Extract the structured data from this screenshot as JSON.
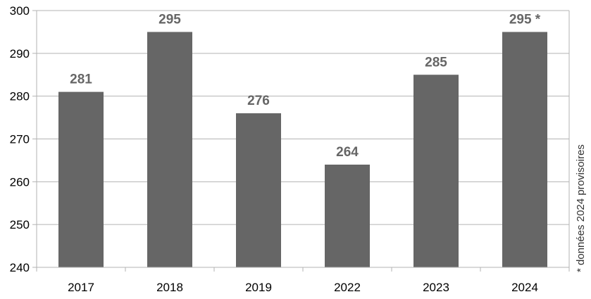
{
  "chart_data": {
    "type": "bar",
    "categories": [
      "2017",
      "2018",
      "2019",
      "2022",
      "2023",
      "2024"
    ],
    "values": [
      281,
      295,
      276,
      264,
      285,
      295
    ],
    "data_labels": [
      "281",
      "295",
      "276",
      "264",
      "285",
      "295 *"
    ],
    "title": "",
    "xlabel": "",
    "ylabel": "",
    "ylim": [
      240,
      300
    ],
    "yticks": [
      240,
      250,
      260,
      270,
      280,
      290,
      300
    ],
    "grid": true,
    "legend": "none",
    "bar_color": "#666666",
    "footnote": "* données 2024 provisoires"
  }
}
